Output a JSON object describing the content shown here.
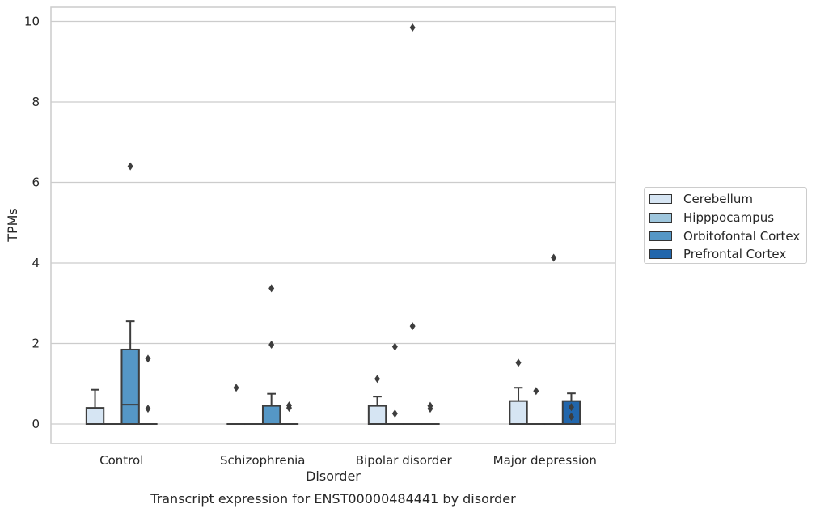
{
  "chart_data": {
    "type": "boxplot",
    "title": "Transcript expression for ENST00000484441 by disorder",
    "xlabel": "Disorder",
    "ylabel": "TPMs",
    "ylim": [
      -0.45,
      10.35
    ],
    "yticks": [
      0,
      2,
      4,
      6,
      8,
      10
    ],
    "grid": true,
    "legend_position": "right",
    "categories": [
      "Control",
      "Schizophrenia",
      "Bipolar disorder",
      "Major depression"
    ],
    "series": [
      {
        "name": "Cerebellum",
        "color": "#d6e5f3",
        "boxes": [
          {
            "q1": 0,
            "median": 0,
            "q3": 0.4,
            "whislo": 0,
            "whishi": 0.85,
            "fliers": []
          },
          {
            "q1": 0,
            "median": 0,
            "q3": 0,
            "whislo": 0,
            "whishi": 0,
            "fliers": [
              0.9
            ]
          },
          {
            "q1": 0,
            "median": 0,
            "q3": 0.45,
            "whislo": 0,
            "whishi": 0.68,
            "fliers": [
              1.12
            ]
          },
          {
            "q1": 0,
            "median": 0,
            "q3": 0.57,
            "whislo": 0,
            "whishi": 0.9,
            "fliers": [
              1.52
            ]
          }
        ]
      },
      {
        "name": "Hipppocampus",
        "color": "#9ec6dd",
        "boxes": [
          {
            "q1": 0,
            "median": 0,
            "q3": 0,
            "whislo": 0,
            "whishi": 0,
            "fliers": []
          },
          {
            "q1": 0,
            "median": 0,
            "q3": 0,
            "whislo": 0,
            "whishi": 0,
            "fliers": []
          },
          {
            "q1": 0,
            "median": 0,
            "q3": 0,
            "whislo": 0,
            "whishi": 0,
            "fliers": [
              0.26,
              1.92
            ]
          },
          {
            "q1": 0,
            "median": 0,
            "q3": 0,
            "whislo": 0,
            "whishi": 0,
            "fliers": [
              0.82
            ]
          }
        ]
      },
      {
        "name": "Orbitofontal Cortex",
        "color": "#5597c6",
        "boxes": [
          {
            "q1": 0,
            "median": 0.48,
            "q3": 1.85,
            "whislo": 0,
            "whishi": 2.55,
            "fliers": [
              6.4
            ]
          },
          {
            "q1": 0,
            "median": 0,
            "q3": 0.45,
            "whislo": 0,
            "whishi": 0.75,
            "fliers": [
              1.97,
              3.37
            ]
          },
          {
            "q1": 0,
            "median": 0,
            "q3": 0,
            "whislo": 0,
            "whishi": 0,
            "fliers": [
              2.43,
              9.85
            ]
          },
          {
            "q1": 0,
            "median": 0,
            "q3": 0,
            "whislo": 0,
            "whishi": 0,
            "fliers": [
              4.13
            ]
          }
        ]
      },
      {
        "name": "Prefrontal Cortex",
        "color": "#2166ac",
        "boxes": [
          {
            "q1": 0,
            "median": 0,
            "q3": 0,
            "whislo": 0,
            "whishi": 0,
            "fliers": [
              0.38,
              1.62
            ]
          },
          {
            "q1": 0,
            "median": 0,
            "q3": 0,
            "whislo": 0,
            "whishi": 0,
            "fliers": [
              0.4,
              0.46
            ]
          },
          {
            "q1": 0,
            "median": 0,
            "q3": 0,
            "whislo": 0,
            "whishi": 0,
            "fliers": [
              0.38,
              0.45
            ]
          },
          {
            "q1": 0,
            "median": 0,
            "q3": 0.57,
            "whislo": 0,
            "whishi": 0.76,
            "fliers": [
              0.18,
              0.42
            ]
          }
        ]
      }
    ]
  }
}
